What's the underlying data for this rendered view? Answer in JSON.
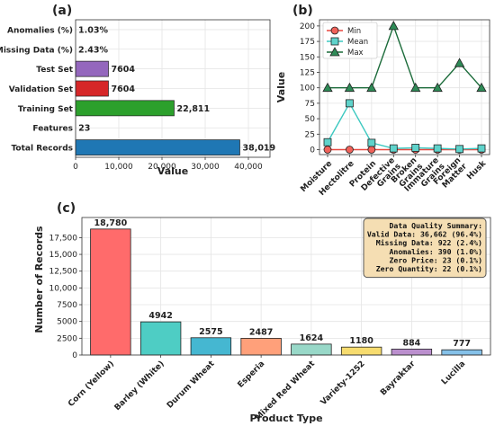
{
  "chart_data": [
    {
      "panel": "(a)",
      "type": "bar",
      "orientation": "horizontal",
      "categories": [
        "Total Records",
        "Features",
        "Training Set",
        "Validation Set",
        "Test Set",
        "Missing Data (%)",
        "Anomalies (%)"
      ],
      "values": [
        38019,
        23,
        22811,
        7604,
        7604,
        2.43,
        1.03
      ],
      "value_labels": [
        "38,019",
        "23",
        "22,811",
        "7604",
        "7604",
        "2.43%",
        "1.03%"
      ],
      "colors": [
        "#1f77b4",
        "#1f77b4",
        "#2ca02c",
        "#d62728",
        "#9467bd",
        "#9467bd",
        "#9467bd"
      ],
      "xlabel": "Value",
      "xlim": [
        0,
        45000
      ],
      "xticks": [
        0,
        10000,
        20000,
        30000,
        40000
      ],
      "xtick_labels": [
        "0",
        "10,000",
        "20,000",
        "30,000",
        "40,000"
      ],
      "grid": true
    },
    {
      "panel": "(b)",
      "type": "line",
      "categories": [
        "Moisture",
        "Hectolitre",
        "Protein",
        "Defective Grains",
        "Broken Grains",
        "Immature Grains",
        "Foreign Matter",
        "Husk"
      ],
      "category_lines": [
        [
          "Moisture"
        ],
        [
          "Hectolitre"
        ],
        [
          "Protein"
        ],
        [
          "Defective",
          "Grains"
        ],
        [
          "Broken",
          "Grains"
        ],
        [
          "Immature",
          "Grains"
        ],
        [
          "Foreign",
          "Matter"
        ],
        [
          "Husk"
        ]
      ],
      "series": [
        {
          "name": "Min",
          "color": "#e8473f",
          "fill": "#f0625a",
          "marker": "circle",
          "values": [
            0,
            0,
            0,
            0,
            0,
            0,
            0,
            0
          ]
        },
        {
          "name": "Mean",
          "color": "#3cc8c0",
          "fill": "#5fd3cb",
          "marker": "square",
          "values": [
            12,
            75,
            11,
            2,
            3,
            2,
            1,
            2
          ]
        },
        {
          "name": "Max",
          "color": "#1b6b3a",
          "fill": "#2e8b57",
          "marker": "triangle",
          "values": [
            100,
            100,
            100,
            200,
            100,
            100,
            140,
            100
          ]
        }
      ],
      "ylabel": "Value",
      "ylim": [
        -8,
        210
      ],
      "yticks": [
        0,
        25,
        50,
        75,
        100,
        125,
        150,
        175,
        200
      ],
      "legend": "top-left",
      "grid": true
    },
    {
      "panel": "(c)",
      "type": "bar",
      "categories": [
        "Corn (Yellow)",
        "Barley (White)",
        "Durum Wheat",
        "Esperia",
        "Mixed Red Wheat",
        "Variety-1252",
        "Bayraktar",
        "Lucilla"
      ],
      "values": [
        18780,
        4942,
        2575,
        2487,
        1624,
        1180,
        884,
        777
      ],
      "value_labels": [
        "18,780",
        "4942",
        "2575",
        "2487",
        "1624",
        "1180",
        "884",
        "777"
      ],
      "colors": [
        "#ff6b6b",
        "#4ecdc4",
        "#45b7d1",
        "#ffa07a",
        "#98d8c8",
        "#f7dc6f",
        "#bb8fce",
        "#85c1e9"
      ],
      "xlabel": "Product Type",
      "ylabel": "Number of Records",
      "ylim": [
        0,
        20500
      ],
      "yticks": [
        0,
        2500,
        5000,
        7500,
        10000,
        12500,
        15000,
        17500
      ],
      "ytick_labels": [
        "0",
        "2500",
        "5000",
        "7500",
        "10,000",
        "12,500",
        "15,000",
        "17,500"
      ],
      "annotation": {
        "title": "Data Quality Summary:",
        "lines": [
          "Valid Data: 36,662 (96.4%)",
          "Missing Data: 922 (2.4%)",
          "Anomalies: 390 (1.0%)",
          "Zero Price: 23 (0.1%)",
          "Zero Quantity: 22 (0.1%)"
        ],
        "background": "#f5deb3",
        "border": "#555555",
        "placement": "top-right"
      },
      "grid": true
    }
  ]
}
